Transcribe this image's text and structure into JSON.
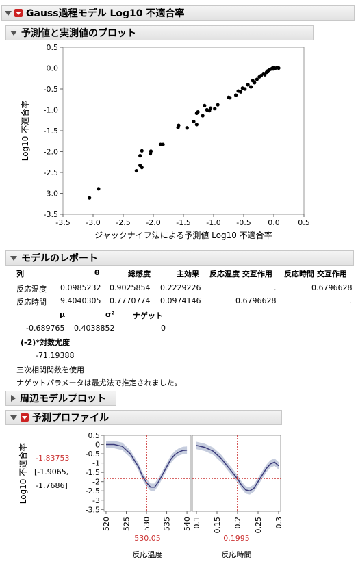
{
  "report": {
    "title": "Gauss過程モデル Log10 不適合率"
  },
  "scatter": {
    "section_title": "予測値と実測値のプロット",
    "chart_data": {
      "type": "scatter",
      "xlabel": "ジャックナイフ法による予測値 Log10 不適合率",
      "ylabel": "Log10 不適合率",
      "xlim": [
        -3.5,
        0.5
      ],
      "ylim": [
        -3.5,
        0.5
      ],
      "xticks": [
        "-3.5",
        "-3.0",
        "-2.5",
        "-2.0",
        "-1.5",
        "-1.0",
        "-0.5",
        "0.0",
        "0.5"
      ],
      "yticks": [
        "0.5",
        "0.0",
        "-0.5",
        "-1.0",
        "-1.5",
        "-2.0",
        "-2.5",
        "-3.0",
        "-3.5"
      ],
      "grid": false,
      "points": [
        [
          -3.06,
          -3.11
        ],
        [
          -2.91,
          -2.89
        ],
        [
          -2.28,
          -2.46
        ],
        [
          -2.22,
          -2.33
        ],
        [
          -2.19,
          -2.38
        ],
        [
          -2.22,
          -2.1
        ],
        [
          -2.19,
          -1.98
        ],
        [
          -2.05,
          -2.05
        ],
        [
          -2.04,
          -1.99
        ],
        [
          -1.88,
          -1.83
        ],
        [
          -1.84,
          -1.83
        ],
        [
          -1.59,
          -1.42
        ],
        [
          -1.58,
          -1.37
        ],
        [
          -1.44,
          -1.43
        ],
        [
          -1.33,
          -1.28
        ],
        [
          -1.28,
          -1.35
        ],
        [
          -1.28,
          -1.08
        ],
        [
          -1.26,
          -1.05
        ],
        [
          -1.18,
          -1.14
        ],
        [
          -1.15,
          -0.9
        ],
        [
          -1.11,
          -1.0
        ],
        [
          -1.07,
          -1.02
        ],
        [
          -1.05,
          -0.96
        ],
        [
          -0.98,
          -0.97
        ],
        [
          -0.93,
          -0.88
        ],
        [
          -0.75,
          -0.7
        ],
        [
          -0.73,
          -0.71
        ],
        [
          -0.63,
          -0.65
        ],
        [
          -0.59,
          -0.55
        ],
        [
          -0.55,
          -0.57
        ],
        [
          -0.52,
          -0.48
        ],
        [
          -0.48,
          -0.5
        ],
        [
          -0.43,
          -0.4
        ],
        [
          -0.38,
          -0.45
        ],
        [
          -0.35,
          -0.3
        ],
        [
          -0.32,
          -0.35
        ],
        [
          -0.28,
          -0.27
        ],
        [
          -0.24,
          -0.21
        ],
        [
          -0.21,
          -0.18
        ],
        [
          -0.17,
          -0.13
        ],
        [
          -0.15,
          -0.16
        ],
        [
          -0.12,
          -0.1
        ],
        [
          -0.1,
          -0.07
        ],
        [
          -0.08,
          -0.05
        ],
        [
          -0.06,
          -0.03
        ],
        [
          -0.04,
          -0.02
        ],
        [
          -0.02,
          0.0
        ],
        [
          0.0,
          0.01
        ],
        [
          0.02,
          -0.01
        ],
        [
          0.05,
          0.01
        ],
        [
          0.08,
          0.0
        ],
        [
          -0.01,
          -0.02
        ]
      ]
    }
  },
  "model_report": {
    "section_title": "モデルのレポート",
    "columns": [
      "列",
      "θ",
      "総感度",
      "主効果",
      "反応温度 交互作用",
      "反応時間 交互作用"
    ],
    "rows": [
      [
        "反応温度",
        "0.0985232",
        "0.9025854",
        "0.2229226",
        ".",
        "0.6796628"
      ],
      [
        "反応時間",
        "9.4040305",
        "0.7770774",
        "0.0974146",
        "0.6796628",
        "."
      ]
    ],
    "params_headers": [
      "μ",
      "σ²",
      "ナゲット"
    ],
    "params_values": [
      "-0.689765",
      "0.4038852",
      "0"
    ],
    "loglik_label": "(-2)*対数尤度",
    "loglik_value": "-71.19388",
    "note1": "三次相関関数を使用",
    "note2": "ナゲットパラメータは最尤法で推定されました。"
  },
  "marginal": {
    "section_title": "周辺モデルプロット"
  },
  "profiler": {
    "section_title": "予測プロファイル",
    "ylabel": "Log10 不適合率",
    "current_value": "-1.83753",
    "ci_line1": "[-1.9065,",
    "ci_line2": "-1.7686]",
    "yticks": [
      "0.5",
      "0",
      "-0.5",
      "-1",
      "-1.5",
      "-2",
      "-2.5",
      "-3",
      "-3.5"
    ],
    "ylim": [
      -3.6,
      0.5
    ],
    "panels": [
      {
        "factor": "反応温度",
        "current_x": "530.05",
        "xlim": [
          519.5,
          541
        ],
        "xticks": [
          "520",
          "525",
          "530",
          "535",
          "540"
        ],
        "curve": [
          [
            520,
            0.0
          ],
          [
            522,
            0.0
          ],
          [
            524,
            -0.1
          ],
          [
            526,
            -0.5
          ],
          [
            528,
            -1.2
          ],
          [
            529,
            -1.7
          ],
          [
            530,
            -2.05
          ],
          [
            531,
            -2.3
          ],
          [
            532,
            -2.3
          ],
          [
            533,
            -2.0
          ],
          [
            534,
            -1.6
          ],
          [
            535,
            -1.2
          ],
          [
            536,
            -0.8
          ],
          [
            537,
            -0.55
          ],
          [
            538,
            -0.4
          ],
          [
            539,
            -0.32
          ],
          [
            540,
            -0.3
          ]
        ]
      },
      {
        "factor": "反応時間",
        "current_x": "0.1995",
        "xlim": [
          0.09,
          0.305
        ],
        "xticks": [
          "0.1",
          "0.15",
          "0.2",
          "0.25",
          "0.3"
        ],
        "curve": [
          [
            0.1,
            -0.05
          ],
          [
            0.12,
            -0.15
          ],
          [
            0.14,
            -0.35
          ],
          [
            0.16,
            -0.75
          ],
          [
            0.18,
            -1.3
          ],
          [
            0.2,
            -1.85
          ],
          [
            0.21,
            -2.2
          ],
          [
            0.22,
            -2.45
          ],
          [
            0.23,
            -2.5
          ],
          [
            0.24,
            -2.35
          ],
          [
            0.25,
            -2.0
          ],
          [
            0.26,
            -1.65
          ],
          [
            0.27,
            -1.3
          ],
          [
            0.28,
            -1.05
          ],
          [
            0.29,
            -0.95
          ],
          [
            0.3,
            -1.15
          ]
        ]
      }
    ],
    "colors": {
      "accent": "#cc3333",
      "curve": "#3a3a7a",
      "band": "#b8c0d6"
    }
  }
}
